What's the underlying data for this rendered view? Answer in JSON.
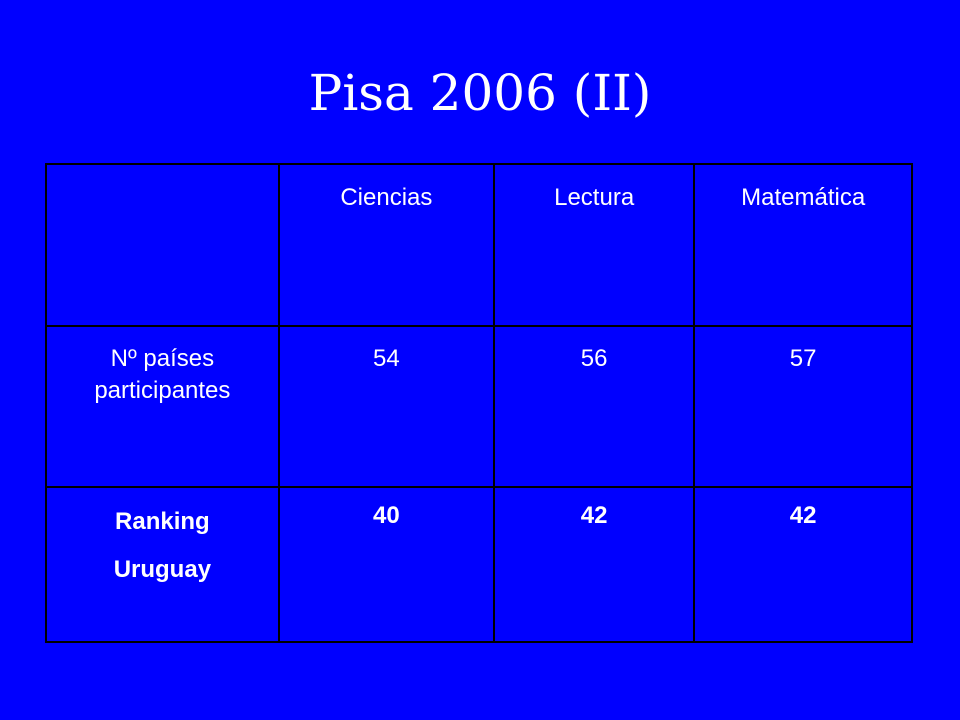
{
  "slide": {
    "title": "Pisa 2006 (II)"
  },
  "table": {
    "header": {
      "corner": "",
      "columns": [
        "Ciencias",
        "Lectura",
        "Matemática"
      ]
    },
    "rows": [
      {
        "label_lines": [
          "Nº países",
          "participantes"
        ],
        "values": [
          "54",
          "56",
          "57"
        ]
      },
      {
        "label_lines": [
          "Ranking",
          "Uruguay"
        ],
        "values": [
          "40",
          "42",
          "42"
        ]
      }
    ]
  },
  "colors": {
    "background": "#0000ff",
    "text": "#ffffff",
    "border": "#000000"
  }
}
